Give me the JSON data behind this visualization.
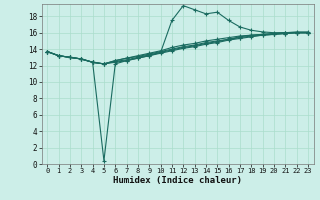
{
  "xlabel": "Humidex (Indice chaleur)",
  "bg_color": "#cceee8",
  "grid_color": "#aaddcc",
  "line_color": "#1a6b60",
  "xlim": [
    -0.5,
    23.5
  ],
  "ylim": [
    0,
    19.5
  ],
  "xticks": [
    0,
    1,
    2,
    3,
    4,
    5,
    6,
    7,
    8,
    9,
    10,
    11,
    12,
    13,
    14,
    15,
    16,
    17,
    18,
    19,
    20,
    21,
    22,
    23
  ],
  "yticks": [
    0,
    2,
    4,
    6,
    8,
    10,
    12,
    14,
    16,
    18
  ],
  "lines": [
    [
      13.7,
      13.2,
      13.0,
      12.8,
      12.4,
      12.2,
      12.4,
      12.6,
      12.9,
      13.2,
      13.5,
      13.8,
      14.1,
      14.3,
      14.6,
      14.8,
      15.1,
      15.3,
      15.5,
      15.7,
      15.8,
      15.9,
      16.0,
      16.0
    ],
    [
      13.7,
      13.2,
      13.0,
      12.8,
      12.4,
      0.4,
      12.2,
      12.6,
      12.9,
      13.2,
      13.6,
      17.5,
      19.3,
      18.8,
      18.3,
      18.5,
      17.5,
      16.7,
      16.3,
      16.1,
      16.0,
      16.0,
      16.0,
      16.0
    ],
    [
      13.7,
      13.2,
      13.0,
      12.8,
      12.4,
      12.2,
      12.6,
      12.9,
      13.2,
      13.5,
      13.8,
      14.2,
      14.5,
      14.7,
      15.0,
      15.2,
      15.4,
      15.6,
      15.7,
      15.8,
      15.9,
      16.0,
      16.0,
      16.0
    ],
    [
      13.7,
      13.2,
      13.0,
      12.8,
      12.4,
      12.2,
      12.6,
      12.9,
      13.1,
      13.4,
      13.7,
      14.0,
      14.3,
      14.5,
      14.8,
      15.0,
      15.2,
      15.5,
      15.7,
      15.8,
      15.9,
      16.0,
      16.1,
      16.1
    ],
    [
      13.7,
      13.2,
      13.0,
      12.8,
      12.4,
      12.2,
      12.5,
      12.7,
      13.0,
      13.3,
      13.6,
      13.9,
      14.2,
      14.4,
      14.7,
      14.9,
      15.2,
      15.4,
      15.6,
      15.7,
      15.8,
      15.9,
      16.0,
      16.0
    ]
  ]
}
